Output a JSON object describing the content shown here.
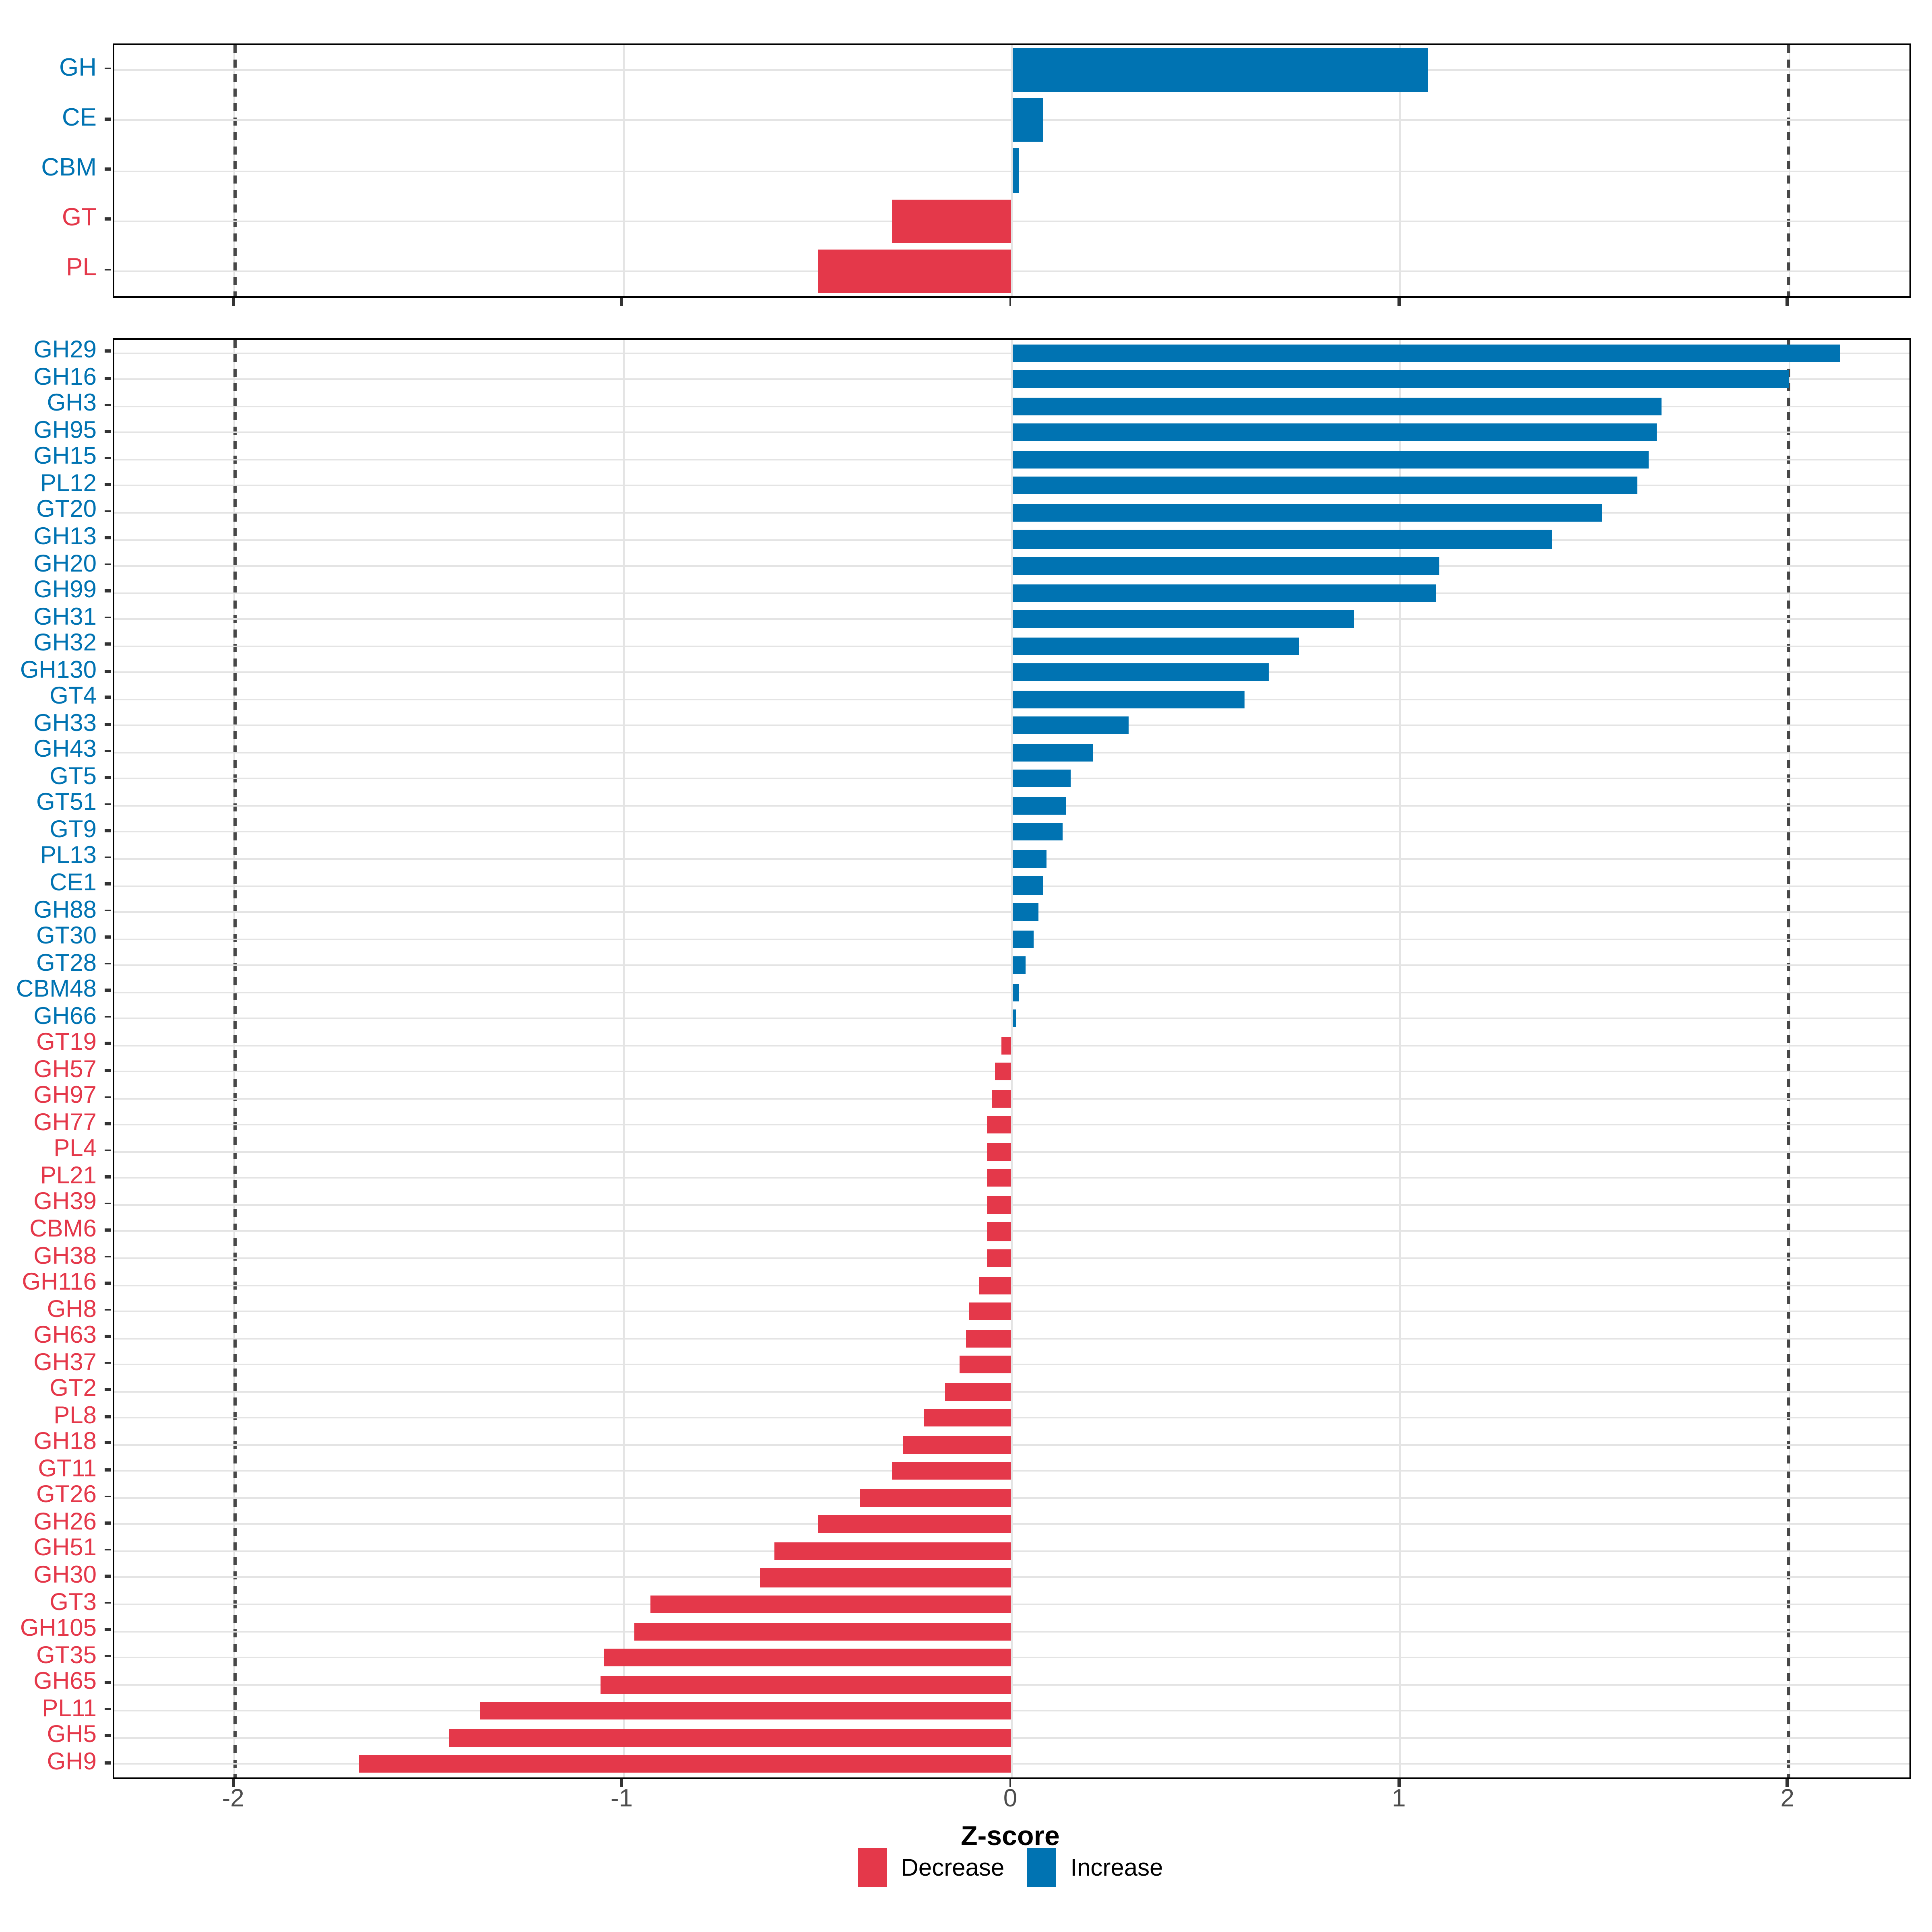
{
  "figure": {
    "xlabel": "Z-score",
    "x_ticks": [
      -2,
      -1,
      0,
      1,
      2
    ],
    "x_tick_labels": [
      "-2",
      "-1",
      "0",
      "1",
      "2"
    ],
    "x_range": [
      -2.31,
      2.31
    ],
    "dashed_lines": [
      -2,
      2
    ],
    "colors": {
      "increase": "#0073B2",
      "decrease": "#E4384A",
      "gridline": "#E4E4E4",
      "dashed_line": "#474747",
      "axis_text": "#4D4D4D",
      "panel_border": "#000000",
      "background": "#FFFFFF"
    },
    "legend": [
      {
        "label": "Decrease",
        "color": "#E4384A"
      },
      {
        "label": "Increase",
        "color": "#0073B2"
      }
    ]
  },
  "chart_data": [
    {
      "type": "bar",
      "orientation": "horizontal",
      "panel": "top",
      "title": "",
      "xlabel": "Z-score",
      "xlim": [
        -2.31,
        2.31
      ],
      "grid": "on",
      "categories": [
        "GH",
        "CE",
        "CBM",
        "GT",
        "PL"
      ],
      "values": [
        1.07,
        0.08,
        0.02,
        -0.31,
        -0.5
      ]
    },
    {
      "type": "bar",
      "orientation": "horizontal",
      "panel": "bottom",
      "title": "",
      "xlabel": "Z-score",
      "xlim": [
        -2.31,
        2.31
      ],
      "grid": "on",
      "legend_position": "bottom",
      "categories": [
        "GH29",
        "GH16",
        "GH3",
        "GH95",
        "GH15",
        "PL12",
        "GT20",
        "GH13",
        "GH20",
        "GH99",
        "GH31",
        "GH32",
        "GH130",
        "GT4",
        "GH33",
        "GH43",
        "GT5",
        "GT51",
        "GT9",
        "PL13",
        "CE1",
        "GH88",
        "GT30",
        "GT28",
        "CBM48",
        "GH66",
        "GT19",
        "GH57",
        "GH97",
        "GH77",
        "PL4",
        "PL21",
        "GH39",
        "CBM6",
        "GH38",
        "GH116",
        "GH8",
        "GH63",
        "GH37",
        "GT2",
        "PL8",
        "GH18",
        "GT11",
        "GT26",
        "GH26",
        "GH51",
        "GH30",
        "GT3",
        "GH105",
        "GT35",
        "GH65",
        "PL11",
        "GH5",
        "GH9"
      ],
      "values": [
        2.13,
        2.0,
        1.67,
        1.66,
        1.64,
        1.61,
        1.52,
        1.39,
        1.1,
        1.09,
        0.88,
        0.74,
        0.66,
        0.6,
        0.3,
        0.21,
        0.15,
        0.14,
        0.13,
        0.09,
        0.08,
        0.07,
        0.055,
        0.035,
        0.02,
        0.012,
        -0.025,
        -0.042,
        -0.052,
        -0.064,
        -0.064,
        -0.064,
        -0.064,
        -0.064,
        -0.064,
        -0.087,
        -0.11,
        -0.12,
        -0.135,
        -0.17,
        -0.225,
        -0.28,
        -0.31,
        -0.39,
        -0.5,
        -0.61,
        -0.65,
        -0.93,
        -0.97,
        -1.05,
        -1.06,
        -1.37,
        -1.45,
        -1.68
      ]
    }
  ]
}
